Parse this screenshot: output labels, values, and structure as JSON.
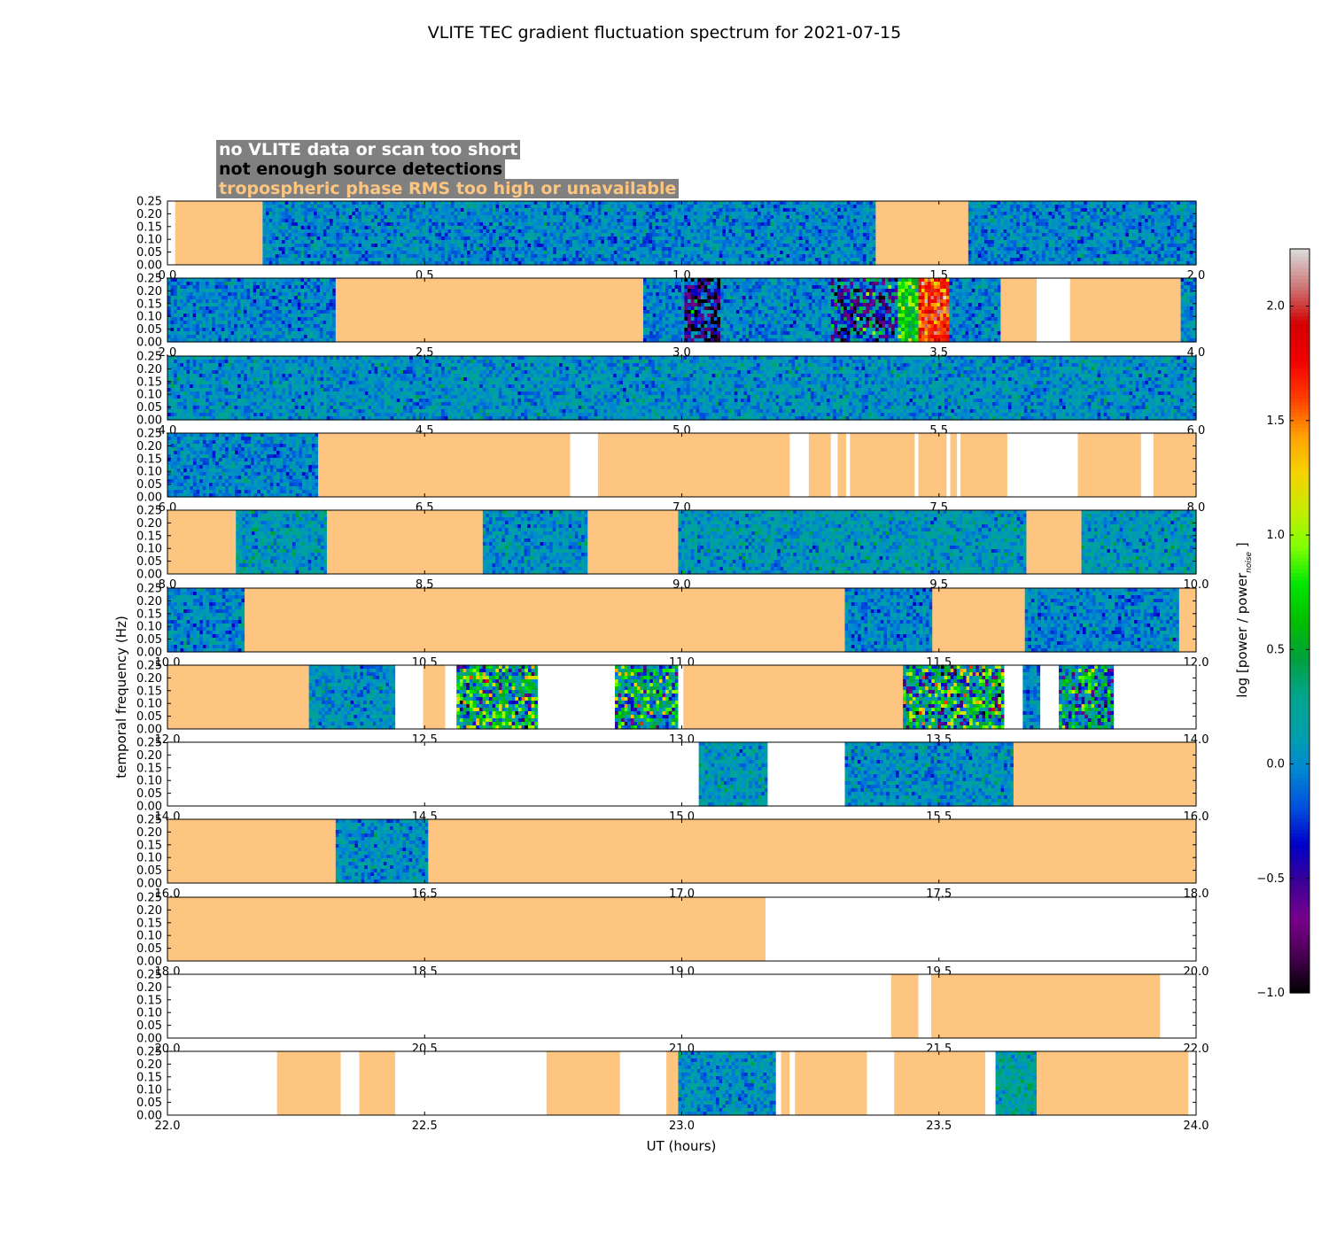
{
  "chart_data": {
    "type": "heatmap",
    "title": "VLITE TEC gradient fluctuation spectrum for 2021-07-15",
    "xlabel": "UT (hours)",
    "ylabel": "temporal frequency (Hz)",
    "ylim": [
      0,
      0.25
    ],
    "yticks": [
      "0.00",
      "0.05",
      "0.10",
      "0.15",
      "0.20",
      "0.25"
    ],
    "colorbar": {
      "label_prefix": "log [power / power",
      "label_sub": "noise",
      "label_suffix": " ]",
      "range": [
        -1.0,
        2.25
      ],
      "ticks": [
        "−1.0",
        "−0.5",
        "0.0",
        "0.5",
        "1.0",
        "1.5",
        "2.0"
      ],
      "tick_values": [
        -1.0,
        -0.5,
        0.0,
        0.5,
        1.0,
        1.5,
        2.0
      ],
      "colormap": "nipy_spectral"
    },
    "legend": [
      {
        "label": "no VLITE data or scan too short",
        "color": "#ffffff"
      },
      {
        "label": "not enough source detections",
        "color": "#000000"
      },
      {
        "label": "tropospheric phase RMS too high or unavailable",
        "color": "#fdc57f"
      }
    ],
    "panels": [
      {
        "xlim": [
          0,
          2
        ],
        "xticks": [
          "0.0",
          "0.5",
          "1.0",
          "1.5",
          "2.0"
        ],
        "segments": [
          {
            "from": 0.0,
            "to": 0.015,
            "state": "nodata"
          },
          {
            "from": 0.015,
            "to": 0.185,
            "state": "tropo"
          },
          {
            "from": 0.185,
            "to": 1.377,
            "state": "data",
            "level": 0.0
          },
          {
            "from": 1.377,
            "to": 1.557,
            "state": "tropo"
          },
          {
            "from": 1.557,
            "to": 2.0,
            "state": "data",
            "level": 0.0
          }
        ]
      },
      {
        "xlim": [
          2,
          4
        ],
        "xticks": [
          "2.0",
          "2.5",
          "3.0",
          "3.5",
          "4.0"
        ],
        "segments": [
          {
            "from": 2.0,
            "to": 2.327,
            "state": "data",
            "level": 0.0
          },
          {
            "from": 2.327,
            "to": 2.925,
            "state": "tropo"
          },
          {
            "from": 2.925,
            "to": 3.005,
            "state": "data",
            "level": 0.0
          },
          {
            "from": 3.005,
            "to": 3.075,
            "state": "data",
            "level": -0.6,
            "spread": 1.1
          },
          {
            "from": 3.075,
            "to": 3.29,
            "state": "data",
            "level": 0.0
          },
          {
            "from": 3.29,
            "to": 3.42,
            "state": "data",
            "level": -0.2,
            "spread": 1.1
          },
          {
            "from": 3.42,
            "to": 3.46,
            "state": "data",
            "level": 0.7,
            "spread": 0.6
          },
          {
            "from": 3.46,
            "to": 3.52,
            "state": "data",
            "level": 1.7,
            "spread": 0.5
          },
          {
            "from": 3.52,
            "to": 3.62,
            "state": "data",
            "level": 0.0
          },
          {
            "from": 3.62,
            "to": 3.69,
            "state": "tropo"
          },
          {
            "from": 3.69,
            "to": 3.755,
            "state": "nodata"
          },
          {
            "from": 3.755,
            "to": 3.97,
            "state": "tropo"
          },
          {
            "from": 3.97,
            "to": 4.0,
            "state": "data",
            "level": 0.0
          }
        ]
      },
      {
        "xlim": [
          4,
          6
        ],
        "xticks": [
          "4.0",
          "4.5",
          "5.0",
          "5.5",
          "6.0"
        ],
        "segments": [
          {
            "from": 4.0,
            "to": 6.0,
            "state": "data",
            "level": 0.05
          }
        ]
      },
      {
        "xlim": [
          6,
          8
        ],
        "xticks": [
          "6.0",
          "6.5",
          "7.0",
          "7.5",
          "8.0"
        ],
        "segments": [
          {
            "from": 6.0,
            "to": 6.293,
            "state": "data",
            "level": 0.0
          },
          {
            "from": 6.293,
            "to": 6.783,
            "state": "tropo"
          },
          {
            "from": 6.783,
            "to": 6.837,
            "state": "nodata"
          },
          {
            "from": 6.837,
            "to": 7.21,
            "state": "tropo"
          },
          {
            "from": 7.21,
            "to": 7.247,
            "state": "nodata"
          },
          {
            "from": 7.247,
            "to": 7.29,
            "state": "tropo"
          },
          {
            "from": 7.29,
            "to": 7.303,
            "state": "nodata"
          },
          {
            "from": 7.303,
            "to": 7.32,
            "state": "tropo"
          },
          {
            "from": 7.32,
            "to": 7.327,
            "state": "nodata"
          },
          {
            "from": 7.327,
            "to": 7.453,
            "state": "tropo"
          },
          {
            "from": 7.453,
            "to": 7.46,
            "state": "nodata"
          },
          {
            "from": 7.46,
            "to": 7.515,
            "state": "tropo"
          },
          {
            "from": 7.515,
            "to": 7.522,
            "state": "nodata"
          },
          {
            "from": 7.522,
            "to": 7.535,
            "state": "tropo"
          },
          {
            "from": 7.535,
            "to": 7.542,
            "state": "nodata"
          },
          {
            "from": 7.542,
            "to": 7.633,
            "state": "tropo"
          },
          {
            "from": 7.633,
            "to": 7.77,
            "state": "nodata"
          },
          {
            "from": 7.77,
            "to": 7.893,
            "state": "tropo"
          },
          {
            "from": 7.893,
            "to": 7.917,
            "state": "nodata"
          },
          {
            "from": 7.917,
            "to": 8.0,
            "state": "tropo"
          }
        ]
      },
      {
        "xlim": [
          8,
          10
        ],
        "xticks": [
          "8.0",
          "8.5",
          "9.0",
          "9.5",
          "10.0"
        ],
        "segments": [
          {
            "from": 8.0,
            "to": 8.133,
            "state": "tropo"
          },
          {
            "from": 8.133,
            "to": 8.31,
            "state": "data",
            "level": 0.1
          },
          {
            "from": 8.31,
            "to": 8.613,
            "state": "tropo"
          },
          {
            "from": 8.613,
            "to": 8.817,
            "state": "data",
            "level": 0.05
          },
          {
            "from": 8.817,
            "to": 8.993,
            "state": "tropo"
          },
          {
            "from": 8.993,
            "to": 9.67,
            "state": "data",
            "level": 0.1
          },
          {
            "from": 9.67,
            "to": 9.777,
            "state": "tropo"
          },
          {
            "from": 9.777,
            "to": 10.0,
            "state": "data",
            "level": 0.1
          }
        ]
      },
      {
        "xlim": [
          10,
          12
        ],
        "xticks": [
          "10.0",
          "10.5",
          "11.0",
          "11.5",
          "12.0"
        ],
        "segments": [
          {
            "from": 10.0,
            "to": 10.15,
            "state": "data",
            "level": 0.0
          },
          {
            "from": 10.15,
            "to": 11.317,
            "state": "tropo"
          },
          {
            "from": 11.317,
            "to": 11.487,
            "state": "data",
            "level": 0.0
          },
          {
            "from": 11.487,
            "to": 11.667,
            "state": "tropo"
          },
          {
            "from": 11.667,
            "to": 11.967,
            "state": "data",
            "level": 0.0
          },
          {
            "from": 11.967,
            "to": 12.0,
            "state": "tropo"
          }
        ]
      },
      {
        "xlim": [
          12,
          14
        ],
        "xticks": [
          "12.0",
          "12.5",
          "13.0",
          "13.5",
          "14.0"
        ],
        "segments": [
          {
            "from": 12.0,
            "to": 12.275,
            "state": "tropo"
          },
          {
            "from": 12.275,
            "to": 12.443,
            "state": "data",
            "level": 0.05
          },
          {
            "from": 12.443,
            "to": 12.497,
            "state": "nodata"
          },
          {
            "from": 12.497,
            "to": 12.54,
            "state": "tropo"
          },
          {
            "from": 12.54,
            "to": 12.562,
            "state": "nodata"
          },
          {
            "from": 12.562,
            "to": 12.72,
            "state": "data",
            "level": 0.4,
            "spread": 1.2
          },
          {
            "from": 12.72,
            "to": 12.87,
            "state": "nodata"
          },
          {
            "from": 12.87,
            "to": 12.993,
            "state": "data",
            "level": 0.3,
            "spread": 1.1
          },
          {
            "from": 12.993,
            "to": 13.003,
            "state": "nodata"
          },
          {
            "from": 13.003,
            "to": 13.43,
            "state": "tropo"
          },
          {
            "from": 13.43,
            "to": 13.627,
            "state": "data",
            "level": 0.3,
            "spread": 1.3
          },
          {
            "from": 13.627,
            "to": 13.663,
            "state": "nodata"
          },
          {
            "from": 13.663,
            "to": 13.697,
            "state": "data",
            "level": 0.0
          },
          {
            "from": 13.697,
            "to": 13.733,
            "state": "nodata"
          },
          {
            "from": 13.733,
            "to": 13.84,
            "state": "data",
            "level": 0.2,
            "spread": 1.0
          },
          {
            "from": 13.84,
            "to": 14.0,
            "state": "nodata"
          }
        ]
      },
      {
        "xlim": [
          14,
          16
        ],
        "xticks": [
          "14.0",
          "14.5",
          "15.0",
          "15.5",
          "16.0"
        ],
        "segments": [
          {
            "from": 14.0,
            "to": 15.033,
            "state": "nodata"
          },
          {
            "from": 15.033,
            "to": 15.167,
            "state": "data",
            "level": 0.1
          },
          {
            "from": 15.167,
            "to": 15.317,
            "state": "nodata"
          },
          {
            "from": 15.317,
            "to": 15.645,
            "state": "data",
            "level": 0.05
          },
          {
            "from": 15.645,
            "to": 16.0,
            "state": "tropo"
          }
        ]
      },
      {
        "xlim": [
          16,
          18
        ],
        "xticks": [
          "16.0",
          "16.5",
          "17.0",
          "17.5",
          "18.0"
        ],
        "segments": [
          {
            "from": 16.0,
            "to": 16.327,
            "state": "tropo"
          },
          {
            "from": 16.327,
            "to": 16.507,
            "state": "data",
            "level": 0.05
          },
          {
            "from": 16.507,
            "to": 18.0,
            "state": "tropo"
          }
        ]
      },
      {
        "xlim": [
          18,
          20
        ],
        "xticks": [
          "18.0",
          "18.5",
          "19.0",
          "19.5",
          "20.0"
        ],
        "segments": [
          {
            "from": 18.0,
            "to": 19.163,
            "state": "tropo"
          },
          {
            "from": 19.163,
            "to": 20.0,
            "state": "nodata"
          }
        ]
      },
      {
        "xlim": [
          20,
          22
        ],
        "xticks": [
          "20.0",
          "20.5",
          "21.0",
          "21.5",
          "22.0"
        ],
        "segments": [
          {
            "from": 20.0,
            "to": 21.407,
            "state": "nodata"
          },
          {
            "from": 21.407,
            "to": 21.46,
            "state": "tropo"
          },
          {
            "from": 21.46,
            "to": 21.485,
            "state": "nodata"
          },
          {
            "from": 21.485,
            "to": 21.93,
            "state": "tropo"
          },
          {
            "from": 21.93,
            "to": 22.0,
            "state": "nodata"
          }
        ]
      },
      {
        "xlim": [
          22,
          24
        ],
        "xticks": [
          "22.0",
          "22.5",
          "23.0",
          "23.5",
          "24.0"
        ],
        "segments": [
          {
            "from": 22.0,
            "to": 22.213,
            "state": "nodata"
          },
          {
            "from": 22.213,
            "to": 22.337,
            "state": "tropo"
          },
          {
            "from": 22.337,
            "to": 22.373,
            "state": "nodata"
          },
          {
            "from": 22.373,
            "to": 22.443,
            "state": "tropo"
          },
          {
            "from": 22.443,
            "to": 22.737,
            "state": "nodata"
          },
          {
            "from": 22.737,
            "to": 22.88,
            "state": "tropo"
          },
          {
            "from": 22.88,
            "to": 22.97,
            "state": "nodata"
          },
          {
            "from": 22.97,
            "to": 22.993,
            "state": "tropo"
          },
          {
            "from": 22.993,
            "to": 23.183,
            "state": "data",
            "level": 0.05
          },
          {
            "from": 23.183,
            "to": 23.193,
            "state": "nodata"
          },
          {
            "from": 23.193,
            "to": 23.21,
            "state": "tropo"
          },
          {
            "from": 23.21,
            "to": 23.22,
            "state": "nodata"
          },
          {
            "from": 23.22,
            "to": 23.36,
            "state": "tropo"
          },
          {
            "from": 23.36,
            "to": 23.413,
            "state": "nodata"
          },
          {
            "from": 23.413,
            "to": 23.59,
            "state": "tropo"
          },
          {
            "from": 23.59,
            "to": 23.61,
            "state": "nodata"
          },
          {
            "from": 23.61,
            "to": 23.69,
            "state": "data",
            "level": 0.2
          },
          {
            "from": 23.69,
            "to": 23.985,
            "state": "tropo"
          },
          {
            "from": 23.985,
            "to": 24.0,
            "state": "nodata"
          }
        ]
      }
    ]
  }
}
